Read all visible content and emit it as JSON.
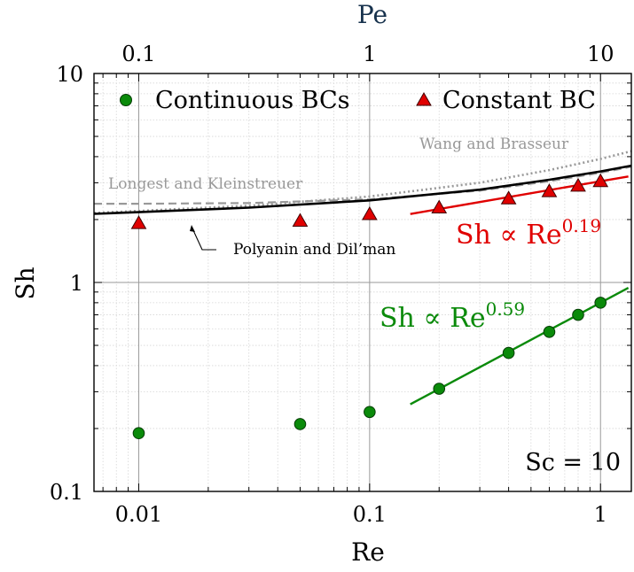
{
  "chart_data": {
    "type": "scatter",
    "title": "",
    "xlabel": "Re",
    "ylabel": "Sh",
    "top_xlabel": "Pe",
    "xscale": "log",
    "yscale": "log",
    "xlim": [
      0.0064,
      1.36
    ],
    "ylim": [
      0.1,
      10
    ],
    "x_ticks": [
      0.01,
      0.1,
      1
    ],
    "x_tick_labels": [
      "0.01",
      "0.1",
      "1"
    ],
    "top_ticks_re": [
      0.01,
      0.1,
      1
    ],
    "top_tick_labels": [
      "0.1",
      "1",
      "10"
    ],
    "y_ticks": [
      0.1,
      1,
      10
    ],
    "y_tick_labels": [
      "0.1",
      "1",
      "10"
    ],
    "grid": true,
    "legend_placement": "top",
    "series": [
      {
        "name": "Continuous BCs",
        "marker": "circle",
        "color": "#0a8a0a",
        "x": [
          0.01,
          0.05,
          0.1,
          0.2,
          0.4,
          0.6,
          0.8,
          1.0
        ],
        "y": [
          0.19,
          0.21,
          0.24,
          0.31,
          0.46,
          0.58,
          0.7,
          0.8
        ]
      },
      {
        "name": "Constant BC",
        "marker": "triangle",
        "color": "#e00000",
        "x": [
          0.01,
          0.05,
          0.1,
          0.2,
          0.4,
          0.6,
          0.8,
          1.0
        ],
        "y": [
          1.92,
          1.97,
          2.12,
          2.28,
          2.52,
          2.73,
          2.9,
          3.05
        ]
      }
    ],
    "fits": [
      {
        "label": "Sh ∝ Re",
        "exponent_label": "0.59",
        "exponent": 0.59,
        "coef": 0.8,
        "x_range": [
          0.15,
          1.32
        ],
        "color": "#0a8a0a"
      },
      {
        "label": "Sh ∝ Re",
        "exponent_label": "0.19",
        "exponent": 0.19,
        "coef": 3.05,
        "x_range": [
          0.15,
          1.32
        ],
        "color": "#e00000"
      }
    ],
    "correlations": [
      {
        "label": "Polyanin and Dil’man",
        "style": "solid",
        "color": "#000000",
        "x": [
          0.0064,
          0.01,
          0.03,
          0.1,
          0.3,
          0.6,
          1.0,
          1.36
        ],
        "y": [
          2.13,
          2.17,
          2.28,
          2.47,
          2.78,
          3.1,
          3.4,
          3.62
        ]
      },
      {
        "label": "Longest and Kleinstreuer",
        "style": "dashed",
        "color": "#999999",
        "x": [
          0.0064,
          0.01,
          0.03,
          0.1,
          0.3,
          0.6,
          1.0,
          1.36
        ],
        "y": [
          2.38,
          2.38,
          2.4,
          2.5,
          2.75,
          3.05,
          3.35,
          3.58
        ]
      },
      {
        "label": "Wang and Brasseur",
        "style": "dotted",
        "color": "#999999",
        "x": [
          0.0064,
          0.01,
          0.03,
          0.1,
          0.3,
          0.6,
          1.0,
          1.36
        ],
        "y": [
          2.15,
          2.2,
          2.33,
          2.58,
          3.0,
          3.45,
          3.9,
          4.25
        ]
      }
    ],
    "annotations": {
      "sc": "Sc = 10"
    }
  }
}
